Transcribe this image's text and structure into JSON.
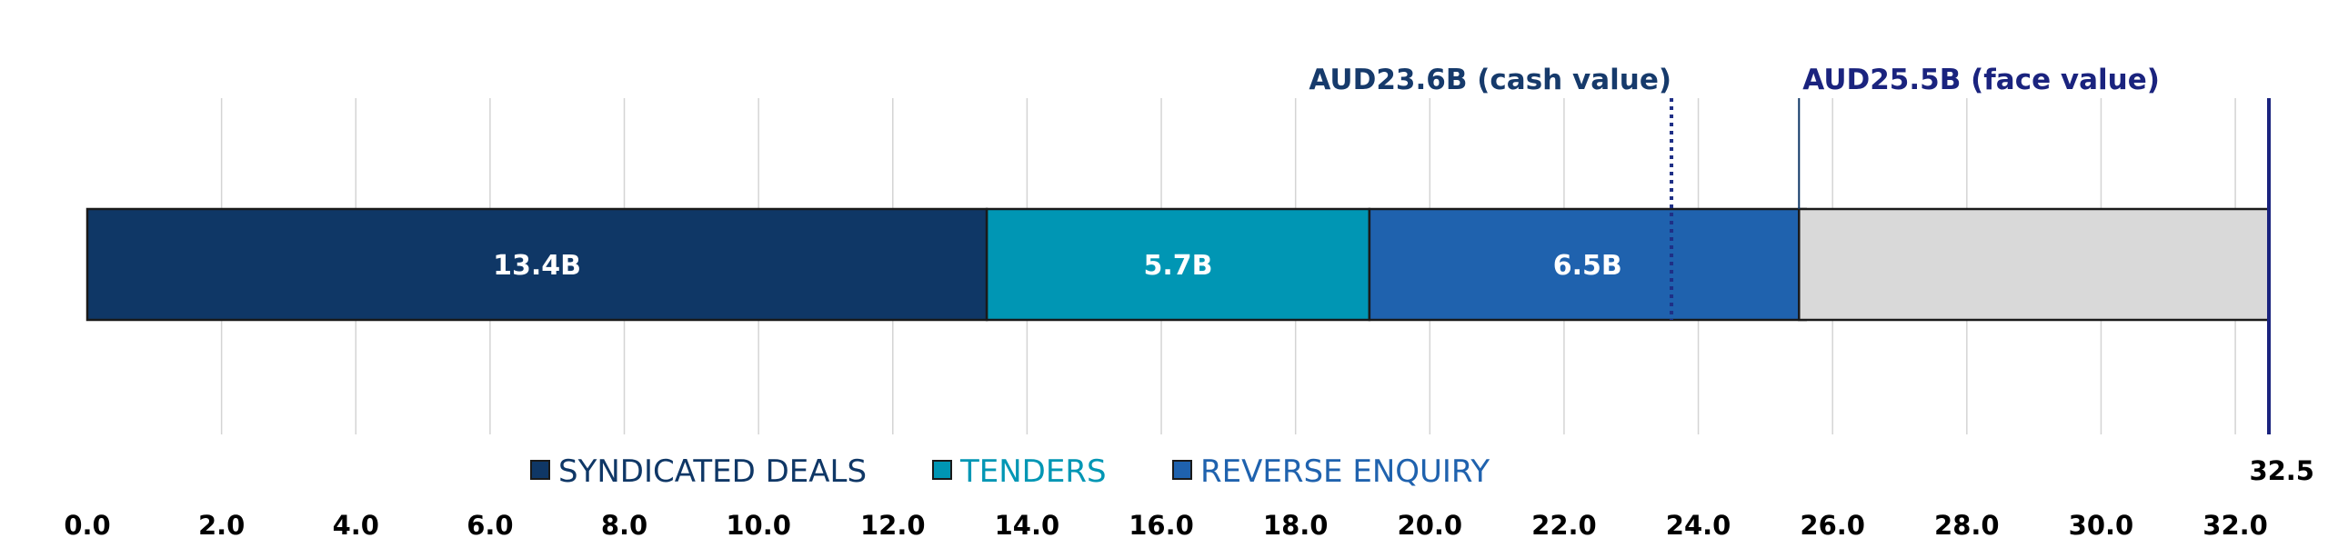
{
  "chart_data": {
    "type": "bar",
    "orientation": "horizontal-stacked",
    "xlim": [
      0,
      32.5
    ],
    "x_ticks": [
      0,
      2,
      4,
      6,
      8,
      10,
      12,
      14,
      16,
      18,
      20,
      22,
      24,
      26,
      28,
      30,
      32
    ],
    "x_tick_labels": [
      "0.0",
      "2.0",
      "4.0",
      "6.0",
      "8.0",
      "10.0",
      "12.0",
      "14.0",
      "16.0",
      "18.0",
      "20.0",
      "22.0",
      "24.0",
      "26.0",
      "28.0",
      "30.0",
      "32.0"
    ],
    "x_max_label": "32.5",
    "grid": true,
    "legend_position": "bottom",
    "series": [
      {
        "name": "SYNDICATED DEALS",
        "value": 13.4,
        "label": "13.4B",
        "color": "#0f3766"
      },
      {
        "name": "TENDERS",
        "value": 5.7,
        "label": "5.7B",
        "color": "#0096b4"
      },
      {
        "name": "REVERSE ENQUIRY",
        "value": 6.5,
        "label": "6.5B",
        "color": "#1f62ae"
      }
    ],
    "remainder": {
      "from": 25.5,
      "to": 32.5,
      "color": "#d9d9d9"
    },
    "annotations": [
      {
        "value": 23.6,
        "text": "AUD23.6B (cash value)",
        "style": "dotted",
        "color": "#1f2f86",
        "text_color": "#163a6b"
      },
      {
        "value": 25.5,
        "text": "AUD25.5B (face value)",
        "style": "solid",
        "color": "#0f3766",
        "text_color": "#1a237e"
      },
      {
        "value": 32.5,
        "text": "",
        "style": "solid",
        "color": "#1a237e",
        "text_color": "#1a237e"
      }
    ]
  }
}
